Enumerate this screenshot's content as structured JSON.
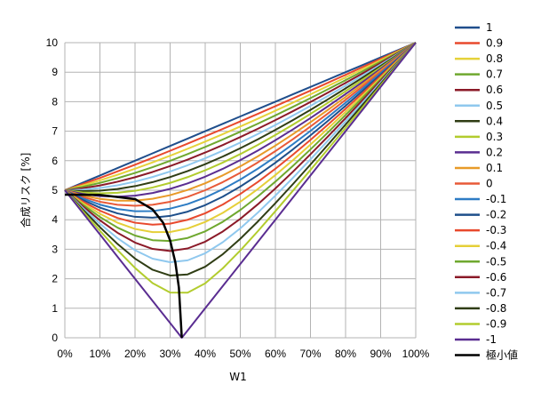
{
  "chart_data": {
    "type": "line",
    "title": "",
    "xlabel": "W1",
    "ylabel": "合成リスク [%]",
    "xlim": [
      0,
      1
    ],
    "ylim": [
      0,
      10
    ],
    "x_tick_labels": [
      "0%",
      "10%",
      "20%",
      "30%",
      "40%",
      "50%",
      "60%",
      "70%",
      "80%",
      "90%",
      "100%"
    ],
    "y_tick_labels": [
      "0",
      "1",
      "2",
      "3",
      "4",
      "5",
      "6",
      "7",
      "8",
      "9",
      "10"
    ],
    "grid": true,
    "legend_position": "right",
    "sigma1": 10,
    "sigma2": 5,
    "x_step": 0.05,
    "series": [
      {
        "name": "1",
        "rho": 1,
        "color": "#1f4e8c"
      },
      {
        "name": "0.9",
        "rho": 0.9,
        "color": "#e8492d"
      },
      {
        "name": "0.8",
        "rho": 0.8,
        "color": "#e5d23a"
      },
      {
        "name": "0.7",
        "rho": 0.7,
        "color": "#6fa82f"
      },
      {
        "name": "0.6",
        "rho": 0.6,
        "color": "#8b1a28"
      },
      {
        "name": "0.5",
        "rho": 0.5,
        "color": "#8fc8ee"
      },
      {
        "name": "0.4",
        "rho": 0.4,
        "color": "#2f3d14"
      },
      {
        "name": "0.3",
        "rho": 0.3,
        "color": "#b2cc2e"
      },
      {
        "name": "0.2",
        "rho": 0.2,
        "color": "#5a2d91"
      },
      {
        "name": "0.1",
        "rho": 0.1,
        "color": "#e89a28"
      },
      {
        "name": "0",
        "rho": 0,
        "color": "#e85a38"
      },
      {
        "name": "-0.1",
        "rho": -0.1,
        "color": "#2d7cc4"
      },
      {
        "name": "-0.2",
        "rho": -0.2,
        "color": "#1e4f8a"
      },
      {
        "name": "-0.3",
        "rho": -0.3,
        "color": "#e8492d"
      },
      {
        "name": "-0.4",
        "rho": -0.4,
        "color": "#e5cf38"
      },
      {
        "name": "-0.5",
        "rho": -0.5,
        "color": "#6fa82f"
      },
      {
        "name": "-0.6",
        "rho": -0.6,
        "color": "#8b1a28"
      },
      {
        "name": "-0.7",
        "rho": -0.7,
        "color": "#8fc8ee"
      },
      {
        "name": "-0.8",
        "rho": -0.8,
        "color": "#2f3d14"
      },
      {
        "name": "-0.9",
        "rho": -0.9,
        "color": "#b2cc2e"
      },
      {
        "name": "-1",
        "rho": -1,
        "color": "#5a2d91"
      }
    ],
    "min_curve": {
      "name": "極小値",
      "color": "#000000",
      "x": [
        0.0,
        0.1,
        0.2,
        0.25,
        0.28,
        0.3,
        0.315,
        0.325,
        0.3333
      ],
      "y": [
        4.85,
        4.84,
        4.7,
        4.35,
        3.9,
        3.3,
        2.55,
        1.7,
        0.0
      ]
    }
  }
}
